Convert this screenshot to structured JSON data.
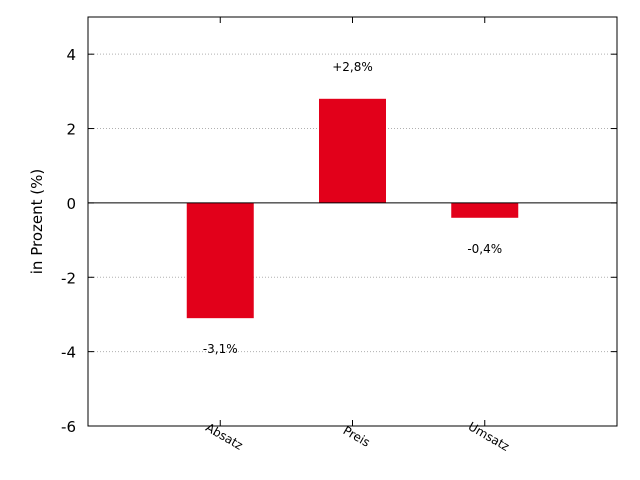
{
  "chart_data": {
    "type": "bar",
    "categories": [
      "Absatz",
      "Preis",
      "Umsatz"
    ],
    "values": [
      -3.1,
      2.8,
      -0.4
    ],
    "data_labels": [
      "-3,1%",
      "+2,8%",
      "-0,4%"
    ],
    "title": "",
    "xlabel": "",
    "ylabel": "in Prozent (%)",
    "ylim": [
      -6,
      5
    ],
    "yticks": [
      -6,
      -4,
      -2,
      0,
      2,
      4
    ],
    "ytick_labels": [
      "-6",
      "-4",
      "-2",
      "0",
      "2",
      "4"
    ],
    "grid": "horizontal dotted",
    "bar_color": "#e2001a",
    "zero_line": true
  }
}
